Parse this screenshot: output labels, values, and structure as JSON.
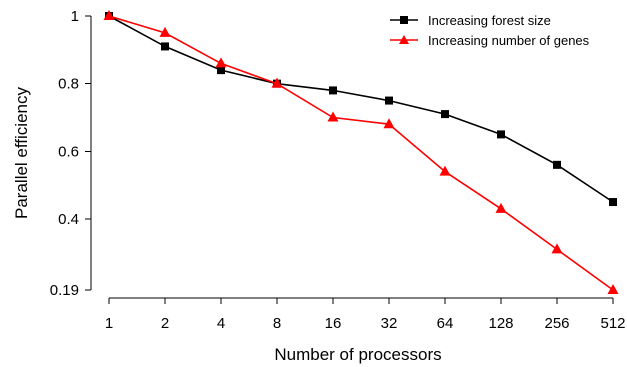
{
  "chart_data": {
    "type": "line",
    "title": "",
    "xlabel": "Number of processors",
    "ylabel": "Parallel efficiency",
    "categories": [
      "1",
      "2",
      "4",
      "8",
      "16",
      "32",
      "64",
      "128",
      "256",
      "512"
    ],
    "x_scale": "log2",
    "y_ticks": [
      "0.19",
      "0.4",
      "0.6",
      "0.8",
      "1"
    ],
    "y_tick_values": [
      0.19,
      0.4,
      0.6,
      0.8,
      1.0
    ],
    "ylim": [
      0.19,
      1.0
    ],
    "grid": false,
    "legend_position": "top-right",
    "series": [
      {
        "name": "Increasing forest size",
        "color": "#000000",
        "marker": "square",
        "values": [
          1.0,
          0.91,
          0.84,
          0.8,
          0.78,
          0.75,
          0.71,
          0.65,
          0.56,
          0.45
        ]
      },
      {
        "name": "Increasing number of genes",
        "color": "#ff0000",
        "marker": "triangle",
        "values": [
          1.0,
          0.95,
          0.86,
          0.8,
          0.7,
          0.68,
          0.54,
          0.43,
          0.31,
          0.19
        ]
      }
    ]
  }
}
